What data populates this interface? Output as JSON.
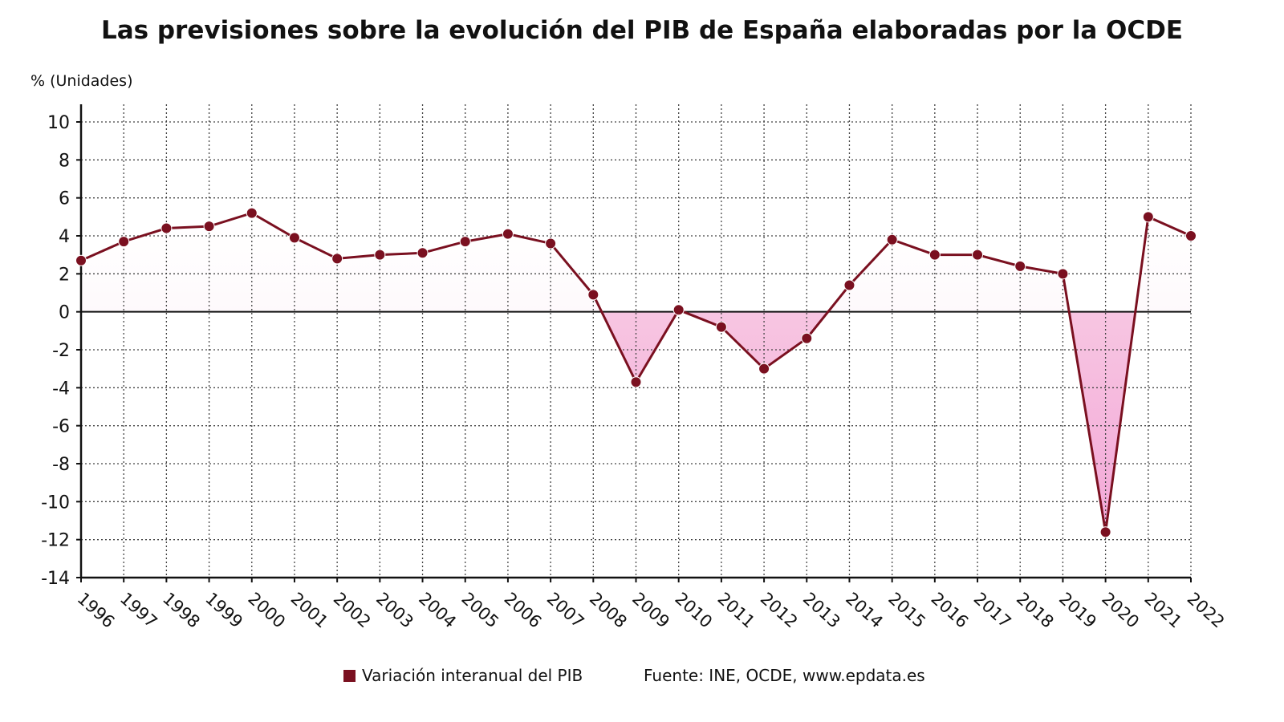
{
  "chart_data": {
    "type": "line",
    "title": "Las previsiones sobre la evolución del PIB de España elaboradas por la OCDE",
    "ylabel": "% (Unidades)",
    "xlabel": "",
    "x": [
      "1996",
      "1997",
      "1998",
      "1999",
      "2000",
      "2001",
      "2002",
      "2003",
      "2004",
      "2005",
      "2006",
      "2007",
      "2008",
      "2009",
      "2010",
      "2011",
      "2012",
      "2013",
      "2014",
      "2015",
      "2016",
      "2017",
      "2018",
      "2019",
      "2020",
      "2021",
      "2022"
    ],
    "series": [
      {
        "name": "Variación interanual del PIB",
        "values": [
          2.7,
          3.7,
          4.4,
          4.5,
          5.2,
          3.9,
          2.8,
          3.0,
          3.1,
          3.7,
          4.1,
          3.6,
          0.9,
          -3.7,
          0.1,
          -0.8,
          -3.0,
          -1.4,
          1.4,
          3.8,
          3.0,
          3.0,
          2.4,
          2.0,
          -11.6,
          5.0,
          4.0
        ],
        "color": "#7a1020"
      }
    ],
    "ylim": [
      -14,
      10
    ],
    "yticks": [
      10,
      8,
      6,
      4,
      2,
      0,
      -2,
      -4,
      -6,
      -8,
      -10,
      -12,
      -14
    ],
    "grid": true,
    "area_fill": "#f9d3e6",
    "legend_position": "bottom"
  },
  "source": "Fuente: INE, OCDE, www.epdata.es"
}
